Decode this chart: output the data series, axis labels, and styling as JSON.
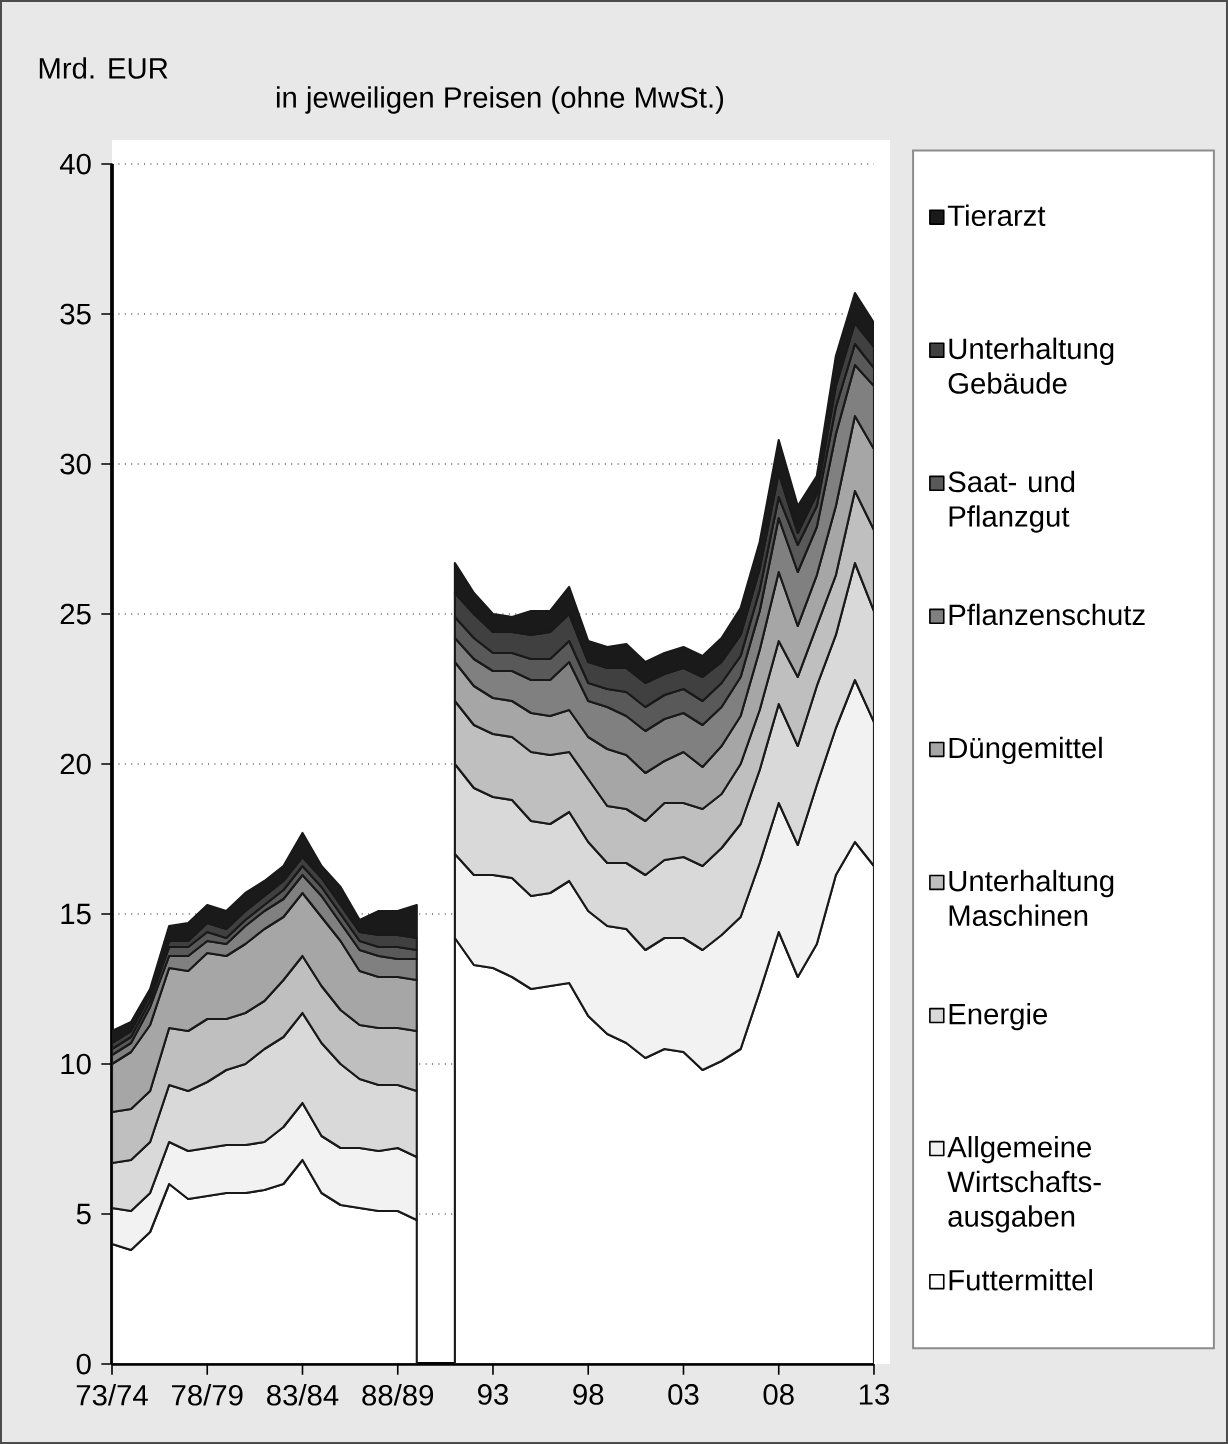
{
  "chart_data": {
    "type": "area",
    "stacked": true,
    "title": "in jeweiligen Preisen (ohne MwSt.)",
    "ylabel": "Mrd. EUR",
    "categories": [
      "73/74",
      null,
      null,
      null,
      null,
      "78/79",
      null,
      null,
      null,
      null,
      "83/84",
      null,
      null,
      null,
      null,
      "88/89",
      null,
      null,
      null,
      null,
      "93",
      null,
      null,
      null,
      null,
      "98",
      null,
      null,
      null,
      null,
      "03",
      null,
      null,
      null,
      null,
      "08",
      null,
      null,
      null,
      null,
      "13"
    ],
    "ylim": [
      0,
      40
    ],
    "yticks": [
      0,
      5,
      10,
      15,
      20,
      25,
      30,
      35,
      40
    ],
    "grid": "y",
    "legend": "right",
    "series": [
      {
        "name": "Futtermittel",
        "color": "#ffffff",
        "values": [
          4.0,
          3.8,
          4.4,
          6.0,
          5.5,
          5.6,
          5.7,
          5.7,
          5.8,
          6.0,
          6.8,
          5.7,
          5.3,
          5.2,
          5.1,
          5.1,
          4.8,
          null,
          14.2,
          13.3,
          13.2,
          12.9,
          12.5,
          12.6,
          12.7,
          11.6,
          11.0,
          10.7,
          10.2,
          10.5,
          10.4,
          9.8,
          10.1,
          10.5,
          12.4,
          14.4,
          12.9,
          14.0,
          16.3,
          17.4,
          16.6
        ]
      },
      {
        "name": "Allgemeine Wirtschafts-ausgaben",
        "color": "#f2f2f2",
        "values": [
          1.2,
          1.3,
          1.3,
          1.4,
          1.6,
          1.6,
          1.6,
          1.6,
          1.6,
          1.9,
          1.9,
          1.9,
          1.9,
          2.0,
          2.0,
          2.1,
          2.1,
          null,
          2.8,
          3.0,
          3.1,
          3.3,
          3.1,
          3.1,
          3.4,
          3.5,
          3.6,
          3.8,
          3.6,
          3.7,
          3.8,
          4.0,
          4.2,
          4.4,
          4.3,
          4.3,
          4.4,
          5.3,
          4.9,
          5.4,
          4.8
        ]
      },
      {
        "name": "Energie",
        "color": "#d9d9d9",
        "values": [
          1.5,
          1.7,
          1.7,
          1.9,
          2.0,
          2.2,
          2.5,
          2.7,
          3.1,
          3.0,
          3.0,
          3.1,
          2.8,
          2.3,
          2.2,
          2.1,
          2.2,
          null,
          3.0,
          2.9,
          2.6,
          2.6,
          2.5,
          2.3,
          2.3,
          2.3,
          2.1,
          2.2,
          2.5,
          2.6,
          2.7,
          2.8,
          2.9,
          3.1,
          3.1,
          3.3,
          3.3,
          3.3,
          3.1,
          3.9,
          3.7
        ]
      },
      {
        "name": "Unterhaltung Maschinen",
        "color": "#bfbfbf",
        "values": [
          1.7,
          1.7,
          1.7,
          1.9,
          2.0,
          2.1,
          1.7,
          1.7,
          1.6,
          1.9,
          1.9,
          1.9,
          1.8,
          1.8,
          1.9,
          1.9,
          2.0,
          null,
          2.1,
          2.1,
          2.1,
          2.1,
          2.3,
          2.3,
          2.0,
          2.1,
          1.9,
          1.8,
          1.8,
          1.9,
          1.8,
          1.9,
          1.8,
          2.0,
          2.0,
          2.1,
          2.3,
          2.0,
          2.0,
          2.4,
          2.7
        ]
      },
      {
        "name": "Düngemittel",
        "color": "#a6a6a6",
        "values": [
          1.6,
          1.9,
          2.2,
          2.0,
          2.0,
          2.2,
          2.1,
          2.3,
          2.4,
          2.1,
          2.1,
          2.3,
          2.3,
          1.8,
          1.7,
          1.7,
          1.7,
          null,
          1.3,
          1.3,
          1.2,
          1.2,
          1.3,
          1.3,
          1.4,
          1.4,
          1.9,
          1.8,
          1.6,
          1.4,
          1.7,
          1.4,
          1.6,
          1.6,
          2.0,
          2.3,
          1.7,
          1.7,
          2.3,
          2.5,
          2.7
        ]
      },
      {
        "name": "Pflanzenschutz",
        "color": "#808080",
        "values": [
          0.3,
          0.3,
          0.6,
          0.4,
          0.5,
          0.4,
          0.4,
          0.6,
          0.6,
          0.6,
          0.6,
          0.7,
          0.6,
          0.7,
          0.7,
          0.6,
          0.7,
          null,
          0.8,
          0.9,
          0.9,
          1.0,
          1.1,
          1.2,
          1.6,
          1.2,
          1.4,
          1.3,
          1.4,
          1.4,
          1.3,
          1.4,
          1.3,
          1.3,
          1.3,
          1.8,
          1.8,
          1.6,
          2.4,
          1.7,
          2.1
        ]
      },
      {
        "name": "Saat- und Pflanzgut",
        "color": "#595959",
        "values": [
          0.2,
          0.2,
          0.2,
          0.3,
          0.3,
          0.3,
          0.2,
          0.2,
          0.2,
          0.3,
          0.3,
          0.3,
          0.3,
          0.3,
          0.3,
          0.4,
          0.3,
          null,
          0.7,
          0.7,
          0.6,
          0.6,
          0.7,
          0.7,
          0.7,
          0.6,
          0.6,
          0.8,
          0.8,
          0.8,
          0.8,
          0.8,
          0.8,
          0.7,
          0.7,
          0.7,
          0.9,
          0.7,
          0.9,
          0.7,
          0.6
        ]
      },
      {
        "name": "Unterhaltung Gebäude",
        "color": "#404040",
        "values": [
          0.2,
          0.2,
          0.2,
          0.2,
          0.2,
          0.3,
          0.3,
          0.3,
          0.3,
          0.3,
          0.3,
          0.3,
          0.3,
          0.3,
          0.4,
          0.4,
          0.4,
          null,
          0.8,
          0.8,
          0.7,
          0.7,
          0.8,
          0.9,
          0.9,
          0.7,
          0.7,
          0.8,
          0.8,
          0.7,
          0.7,
          0.8,
          0.7,
          0.7,
          0.7,
          0.8,
          0.4,
          0.4,
          0.7,
          0.7,
          0.7
        ]
      },
      {
        "name": "Tierarzt",
        "color": "#1a1a1a",
        "values": [
          0.4,
          0.3,
          0.2,
          0.5,
          0.6,
          0.6,
          0.6,
          0.6,
          0.5,
          0.5,
          0.8,
          0.4,
          0.6,
          0.4,
          0.8,
          0.8,
          1.1,
          null,
          1.0,
          0.7,
          0.6,
          0.5,
          0.8,
          0.7,
          0.9,
          0.7,
          0.7,
          0.8,
          0.7,
          0.7,
          0.7,
          0.7,
          0.8,
          0.9,
          0.9,
          1.1,
          0.9,
          0.6,
          1.0,
          1.0,
          0.8
        ]
      }
    ]
  }
}
